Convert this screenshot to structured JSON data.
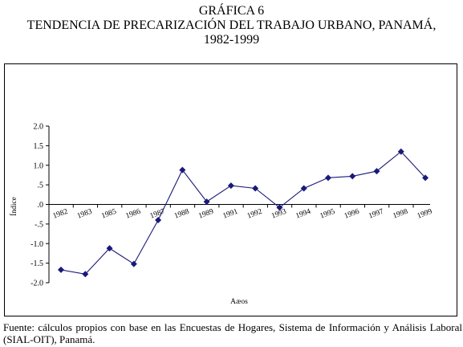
{
  "header": {
    "line1": "GRÁFICA 6",
    "line2": "TENDENCIA DE PRECARIZACIÓN DEL TRABAJO URBANO, PANAMÁ,",
    "line3": "1982-1999"
  },
  "source_note": "Fuente: cálculos propios con base en las Encuestas de Hogares, Sistema de Información y Análisis Laboral (SIAL-OIT), Panamá.",
  "chart_data": {
    "type": "line",
    "title": "TENDENCIA DE PRECARIZACIÓN DEL TRABAJO URBANO, PANAMÁ, 1982-1999",
    "xlabel": "Aæos",
    "ylabel": "Índice",
    "x": [
      "1982",
      "1983",
      "1985",
      "1986",
      "1987",
      "1988",
      "1989",
      "1991",
      "1992",
      "1993",
      "1994",
      "1995",
      "1996",
      "1997",
      "1998",
      "1999"
    ],
    "series": [
      {
        "values": [
          -1.67,
          -1.78,
          -1.12,
          -1.52,
          -0.4,
          0.88,
          0.07,
          0.48,
          0.41,
          -0.08,
          0.41,
          0.68,
          0.72,
          0.85,
          1.35,
          0.68
        ],
        "color": "#1a1a7a",
        "marker": "diamond"
      }
    ],
    "yticks": [
      "2.0",
      "1.5",
      "1.0",
      ".5",
      ".0",
      "-.5",
      "-1.0",
      "-1.5",
      "-2.0"
    ],
    "ytick_values": [
      2.0,
      1.5,
      1.0,
      0.5,
      0.0,
      -0.5,
      -1.0,
      -1.5,
      -2.0
    ],
    "ylim": [
      -2.0,
      2.0
    ],
    "grid": false,
    "legend": "none"
  }
}
